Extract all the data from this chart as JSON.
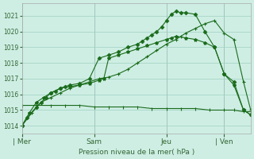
{
  "background_color": "#ceeee4",
  "grid_color": "#a0cfc0",
  "line_color": "#1a6b1a",
  "ylabel": "Pression niveau de la mer( hPa )",
  "ylim": [
    1013.5,
    1021.8
  ],
  "yticks": [
    1014,
    1015,
    1016,
    1017,
    1018,
    1019,
    1020,
    1021
  ],
  "xtick_labels": [
    "| Mer",
    "Sam",
    "Jeu",
    "| Ven"
  ],
  "xtick_positions": [
    0,
    30,
    60,
    84
  ],
  "total_points": 96,
  "series1_x": [
    0,
    2,
    6,
    8,
    10,
    12,
    14,
    16,
    18,
    20,
    24,
    28,
    32,
    36,
    40,
    44,
    48,
    50,
    52,
    54,
    56,
    58,
    60,
    62,
    64,
    66,
    68,
    72,
    76,
    80,
    84,
    88,
    92,
    95
  ],
  "series1_y": [
    1014.0,
    1014.5,
    1015.2,
    1015.5,
    1015.8,
    1016.1,
    1016.2,
    1016.4,
    1016.5,
    1016.6,
    1016.7,
    1017.0,
    1018.3,
    1018.5,
    1018.7,
    1019.0,
    1019.2,
    1019.4,
    1019.6,
    1019.8,
    1020.0,
    1020.3,
    1020.7,
    1021.1,
    1021.3,
    1021.2,
    1021.2,
    1021.1,
    1020.0,
    1019.0,
    1017.3,
    1016.8,
    1015.0,
    1014.7
  ],
  "series2_x": [
    0,
    4,
    8,
    12,
    16,
    20,
    24,
    28,
    32,
    36,
    40,
    44,
    48,
    52,
    56,
    60,
    64,
    66,
    68,
    72,
    76,
    80,
    84,
    88,
    92,
    95
  ],
  "series2_y": [
    1014.0,
    1014.8,
    1015.5,
    1015.8,
    1016.1,
    1016.4,
    1016.6,
    1016.8,
    1017.0,
    1017.1,
    1017.3,
    1017.6,
    1018.0,
    1018.4,
    1018.8,
    1019.2,
    1019.5,
    1019.7,
    1019.9,
    1020.2,
    1020.5,
    1020.7,
    1019.9,
    1019.5,
    1016.8,
    1015.0
  ],
  "series3_x": [
    0,
    6,
    12,
    18,
    24,
    30,
    36,
    42,
    48,
    54,
    60,
    66,
    72,
    78,
    84,
    88,
    92,
    95
  ],
  "series3_y": [
    1015.3,
    1015.3,
    1015.3,
    1015.3,
    1015.3,
    1015.2,
    1015.2,
    1015.2,
    1015.2,
    1015.1,
    1015.1,
    1015.1,
    1015.1,
    1015.0,
    1015.0,
    1015.0,
    1014.9,
    1014.9
  ],
  "series4_x": [
    0,
    3,
    6,
    9,
    12,
    16,
    20,
    24,
    28,
    32,
    34,
    36,
    40,
    44,
    48,
    52,
    56,
    60,
    62,
    64,
    68,
    72,
    76,
    80,
    84,
    88,
    92,
    95
  ],
  "series4_y": [
    1014.0,
    1014.8,
    1015.5,
    1015.8,
    1016.1,
    1016.4,
    1016.5,
    1016.6,
    1016.7,
    1016.9,
    1017.0,
    1018.3,
    1018.5,
    1018.7,
    1018.9,
    1019.1,
    1019.3,
    1019.5,
    1019.6,
    1019.7,
    1019.6,
    1019.5,
    1019.3,
    1019.0,
    1017.3,
    1016.6,
    1015.0,
    1014.7
  ]
}
